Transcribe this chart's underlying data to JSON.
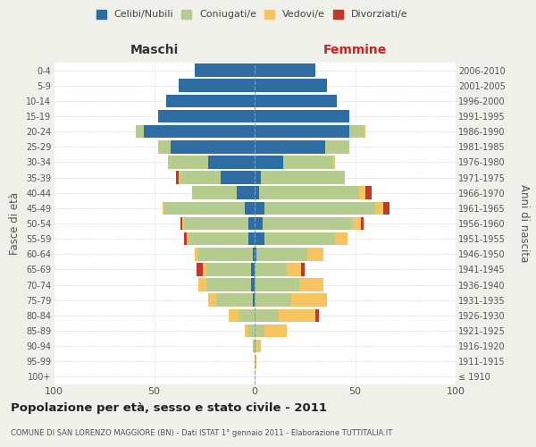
{
  "age_groups": [
    "100+",
    "95-99",
    "90-94",
    "85-89",
    "80-84",
    "75-79",
    "70-74",
    "65-69",
    "60-64",
    "55-59",
    "50-54",
    "45-49",
    "40-44",
    "35-39",
    "30-34",
    "25-29",
    "20-24",
    "15-19",
    "10-14",
    "5-9",
    "0-4"
  ],
  "birth_years": [
    "≤ 1910",
    "1911-1915",
    "1916-1920",
    "1921-1925",
    "1926-1930",
    "1931-1935",
    "1936-1940",
    "1941-1945",
    "1946-1950",
    "1951-1955",
    "1956-1960",
    "1961-1965",
    "1966-1970",
    "1971-1975",
    "1976-1980",
    "1981-1985",
    "1986-1990",
    "1991-1995",
    "1996-2000",
    "2001-2005",
    "2006-2010"
  ],
  "males": {
    "celibi": [
      0,
      0,
      0,
      0,
      0,
      1,
      2,
      2,
      1,
      3,
      3,
      5,
      9,
      17,
      23,
      42,
      55,
      48,
      44,
      38,
      30
    ],
    "coniugati": [
      0,
      0,
      1,
      3,
      8,
      18,
      22,
      22,
      27,
      30,
      32,
      40,
      22,
      20,
      20,
      6,
      4,
      0,
      0,
      0,
      0
    ],
    "vedovi": [
      0,
      0,
      0,
      2,
      5,
      4,
      4,
      2,
      2,
      1,
      1,
      1,
      0,
      1,
      0,
      0,
      0,
      0,
      0,
      0,
      0
    ],
    "divorziati": [
      0,
      0,
      0,
      0,
      0,
      0,
      0,
      3,
      0,
      1,
      1,
      0,
      0,
      1,
      0,
      0,
      0,
      0,
      0,
      0,
      0
    ]
  },
  "females": {
    "nubili": [
      0,
      0,
      0,
      0,
      0,
      0,
      0,
      0,
      1,
      5,
      4,
      5,
      2,
      3,
      14,
      35,
      47,
      47,
      41,
      36,
      30
    ],
    "coniugate": [
      0,
      0,
      1,
      5,
      12,
      18,
      22,
      16,
      25,
      35,
      45,
      55,
      50,
      42,
      25,
      12,
      7,
      0,
      0,
      0,
      0
    ],
    "vedove": [
      0,
      1,
      2,
      11,
      18,
      18,
      12,
      7,
      8,
      6,
      4,
      4,
      3,
      0,
      1,
      0,
      1,
      0,
      0,
      0,
      0
    ],
    "divorziate": [
      0,
      0,
      0,
      0,
      2,
      0,
      0,
      2,
      0,
      0,
      1,
      3,
      3,
      0,
      0,
      0,
      0,
      0,
      0,
      0,
      0
    ]
  },
  "colors": {
    "celibi": "#2e6da4",
    "coniugati": "#b5cc8e",
    "vedovi": "#f5c35f",
    "divorziati": "#c0392b"
  },
  "xlim": 100,
  "title": "Popolazione per età, sesso e stato civile - 2011",
  "subtitle": "COMUNE DI SAN LORENZO MAGGIORE (BN) - Dati ISTAT 1° gennaio 2011 - Elaborazione TUTTITALIA.IT",
  "ylabel": "Fasce di età",
  "ylabel_right": "Anni di nascita",
  "xlabel_maschi": "Maschi",
  "xlabel_femmine": "Femmine",
  "legend_labels": [
    "Celibi/Nubili",
    "Coniugati/e",
    "Vedovi/e",
    "Divorziati/e"
  ],
  "bg_color": "#f0f0eb",
  "plot_bg": "#ffffff"
}
